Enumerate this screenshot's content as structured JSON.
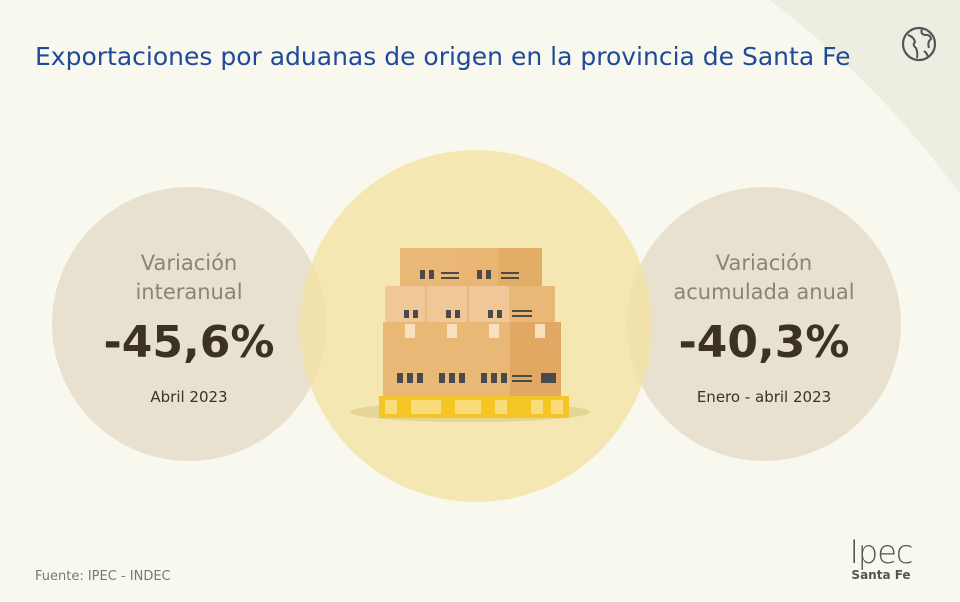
{
  "header": {
    "title": "Exportaciones por aduanas de origen en la provincia de Santa Fe",
    "icon": "globe-icon"
  },
  "stats": [
    {
      "label_line1": "Variación",
      "label_line2": "interanual",
      "value": "-45,6%",
      "period": "Abril 2023"
    },
    {
      "label_line1": "Variación",
      "label_line2": "acumulada anual",
      "value": "-40,3%",
      "period": "Enero - abril 2023"
    }
  ],
  "illustration": {
    "icon": "pallet-boxes-icon"
  },
  "footer": {
    "source": "Fuente: IPEC - INDEC",
    "logo_text": "Ipec",
    "logo_subtitle": "Santa Fe"
  },
  "colors": {
    "title": "#1f4a9a",
    "value": "#3c3222",
    "center_circle": "#f3e2a0",
    "side_circle": "#e1dac6",
    "pallet": "#f5c425",
    "box": "#e8b97a"
  }
}
